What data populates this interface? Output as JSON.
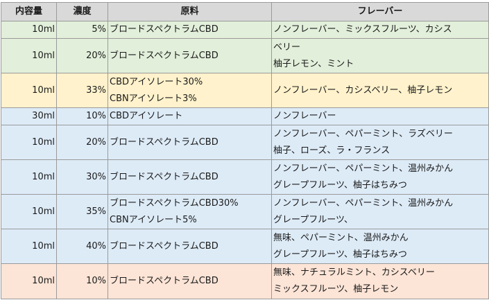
{
  "table": {
    "headers": [
      "内容量",
      "濃度",
      "原料",
      "フレーバー"
    ],
    "rows": [
      {
        "volume": "10ml",
        "concentration": "5%",
        "material": [
          "ブロードスペクトラムCBD"
        ],
        "flavors": [
          "ノンフレーバー、ミックスフルーツ、カシス"
        ]
      },
      {
        "volume": "10ml",
        "concentration": "20%",
        "material": [
          "ブロードスペクトラムCBD"
        ],
        "flavors": [
          "ベリー",
          "柚子レモン、ミント"
        ]
      },
      {
        "volume": "10ml",
        "concentration": "33%",
        "material": [
          "CBDアイソレート30%",
          "CBNアイソレート3%"
        ],
        "flavors": [
          "ノンフレーバー、カシスベリー、柚子レモン"
        ]
      },
      {
        "volume": "30ml",
        "concentration": "10%",
        "material": [
          "CBDアイソレート"
        ],
        "flavors": [
          "ノンフレーバー"
        ]
      },
      {
        "volume": "10ml",
        "concentration": "20%",
        "material": [
          "ブロードスペクトラムCBD"
        ],
        "flavors": [
          "ノンフレーバー、ペパーミント、ラズベリー",
          "柚子、ローズ、ラ・フランス"
        ]
      },
      {
        "volume": "10ml",
        "concentration": "30%",
        "material": [
          "ブロードスペクトラムCBD"
        ],
        "flavors": [
          "ノンフレーバー、ペパーミント、温州みかん",
          "グレープフルーツ、柚子はちみつ"
        ]
      },
      {
        "volume": "10ml",
        "concentration": "35%",
        "material": [
          "ブロードスペクトラムCBD30%",
          "CBNアイソレート5%"
        ],
        "flavors": [
          "ノンフレーバー、ペパーミント、温州みかん",
          "グレープフルーツ、"
        ]
      },
      {
        "volume": "10ml",
        "concentration": "40%",
        "material": [
          "ブロードスペクトラムCBD"
        ],
        "flavors": [
          "無味、ペパーミント、温州みかん",
          "グレープフルーツ、柚子はちみつ"
        ]
      },
      {
        "volume": "10ml",
        "concentration": "10%",
        "material": [
          "ブロードスペクトラムCBD"
        ],
        "flavors": [
          "無味、ナチュラルミント、カシスベリー",
          "ミックスフルーツ、柚子レモン"
        ]
      }
    ]
  },
  "colors": {
    "header_bg": "#d9d9d9",
    "green": "#e2efda",
    "yellow": "#fff2cc",
    "blue": "#ddebf7",
    "pink": "#fce4d6",
    "border": "#9a9a9a"
  }
}
